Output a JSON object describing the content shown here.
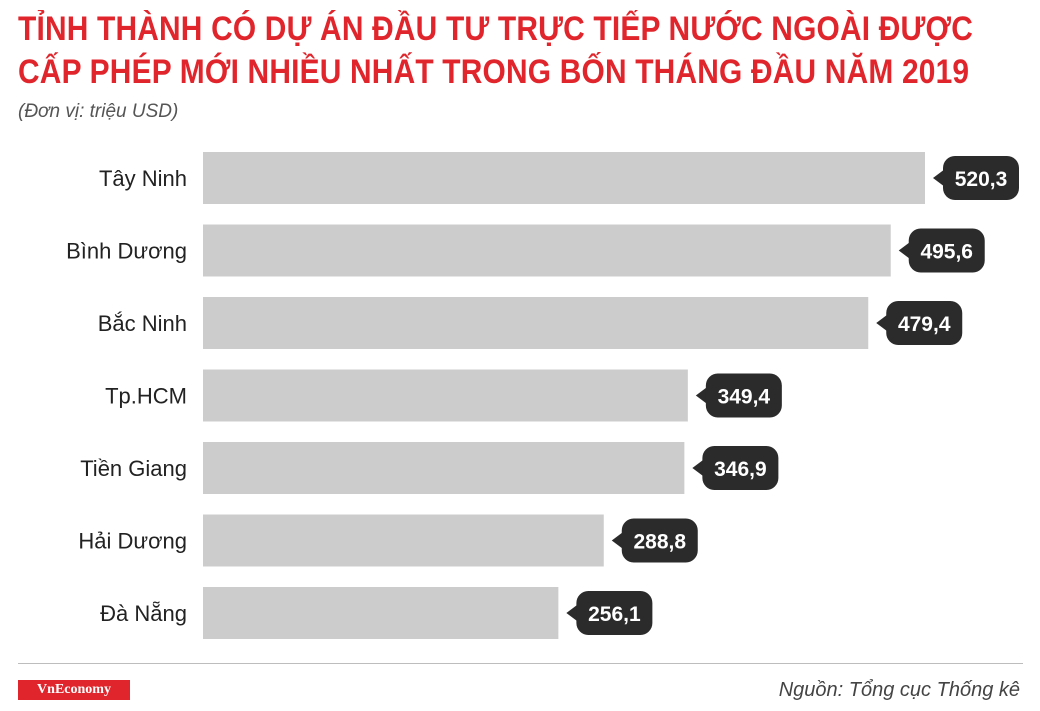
{
  "title_line1": "TỈNH THÀNH CÓ DỰ ÁN ĐẦU TƯ TRỰC TIẾP NƯỚC NGOÀI ĐƯỢC",
  "title_line2": "CẤP PHÉP MỚI NHIỀU NHẤT TRONG BỐN THÁNG ĐẦU NĂM 2019",
  "unit": "(Đơn vị: triệu USD)",
  "source": "Nguồn: Tổng cục Thống kê",
  "logo": "VnEconomy",
  "colors": {
    "title": "#e0262c",
    "bar": "#cccccc",
    "label_bg": "#2b2b2b",
    "label_text": "#ffffff",
    "logo_bg": "#e0262c"
  },
  "chart_data": {
    "type": "bar",
    "orientation": "horizontal",
    "categories": [
      "Tây Ninh",
      "Bình Dương",
      "Bắc Ninh",
      "Tp.HCM",
      "Tiền Giang",
      "Hải Dương",
      "Đà Nẵng"
    ],
    "values": [
      520.3,
      495.6,
      479.4,
      349.4,
      346.9,
      288.8,
      256.1
    ],
    "value_labels": [
      "520,3",
      "495,6",
      "479,4",
      "349,4",
      "346,9",
      "288,8",
      "256,1"
    ],
    "xlim": [
      0,
      520.3
    ],
    "grid": false,
    "legend": "none"
  }
}
